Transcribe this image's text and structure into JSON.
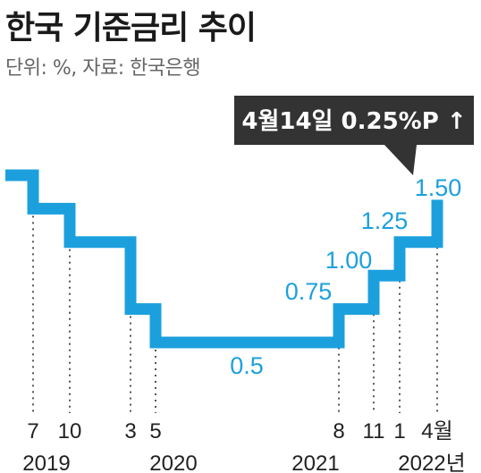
{
  "title": "한국 기준금리 추이",
  "subtitle": "단위: %, 자료: 한국은행",
  "callout": {
    "text": "4월14일  0.25%P ↑"
  },
  "colors": {
    "line": "#1ca0dd",
    "label": "#1ca0dd",
    "text": "#222222",
    "callout_bg": "#333333",
    "callout_text": "#ffffff",
    "dots": "#555555"
  },
  "chart_data": {
    "type": "line",
    "step": "after",
    "x": [
      "2019-06",
      "2019-07",
      "2019-10",
      "2020-03",
      "2020-05",
      "2021-08",
      "2021-11",
      "2022-01",
      "2022-04"
    ],
    "values": [
      1.75,
      1.5,
      1.25,
      0.75,
      0.5,
      0.75,
      1.0,
      1.25,
      1.5
    ],
    "data_labels": [
      {
        "x": "2020-05",
        "text": "0.5"
      },
      {
        "x": "2021-08",
        "text": "0.75"
      },
      {
        "x": "2021-11",
        "text": "1.00"
      },
      {
        "x": "2022-01",
        "text": "1.25"
      },
      {
        "x": "2022-04",
        "text": "1.50"
      }
    ],
    "month_ticks": [
      "7",
      "10",
      "3",
      "5",
      "8",
      "11",
      "1",
      "4월"
    ],
    "year_ticks": [
      "2019",
      "2020",
      "2021",
      "2022년"
    ],
    "ylim": [
      0.5,
      1.75
    ],
    "grid": false,
    "legend": "none"
  }
}
